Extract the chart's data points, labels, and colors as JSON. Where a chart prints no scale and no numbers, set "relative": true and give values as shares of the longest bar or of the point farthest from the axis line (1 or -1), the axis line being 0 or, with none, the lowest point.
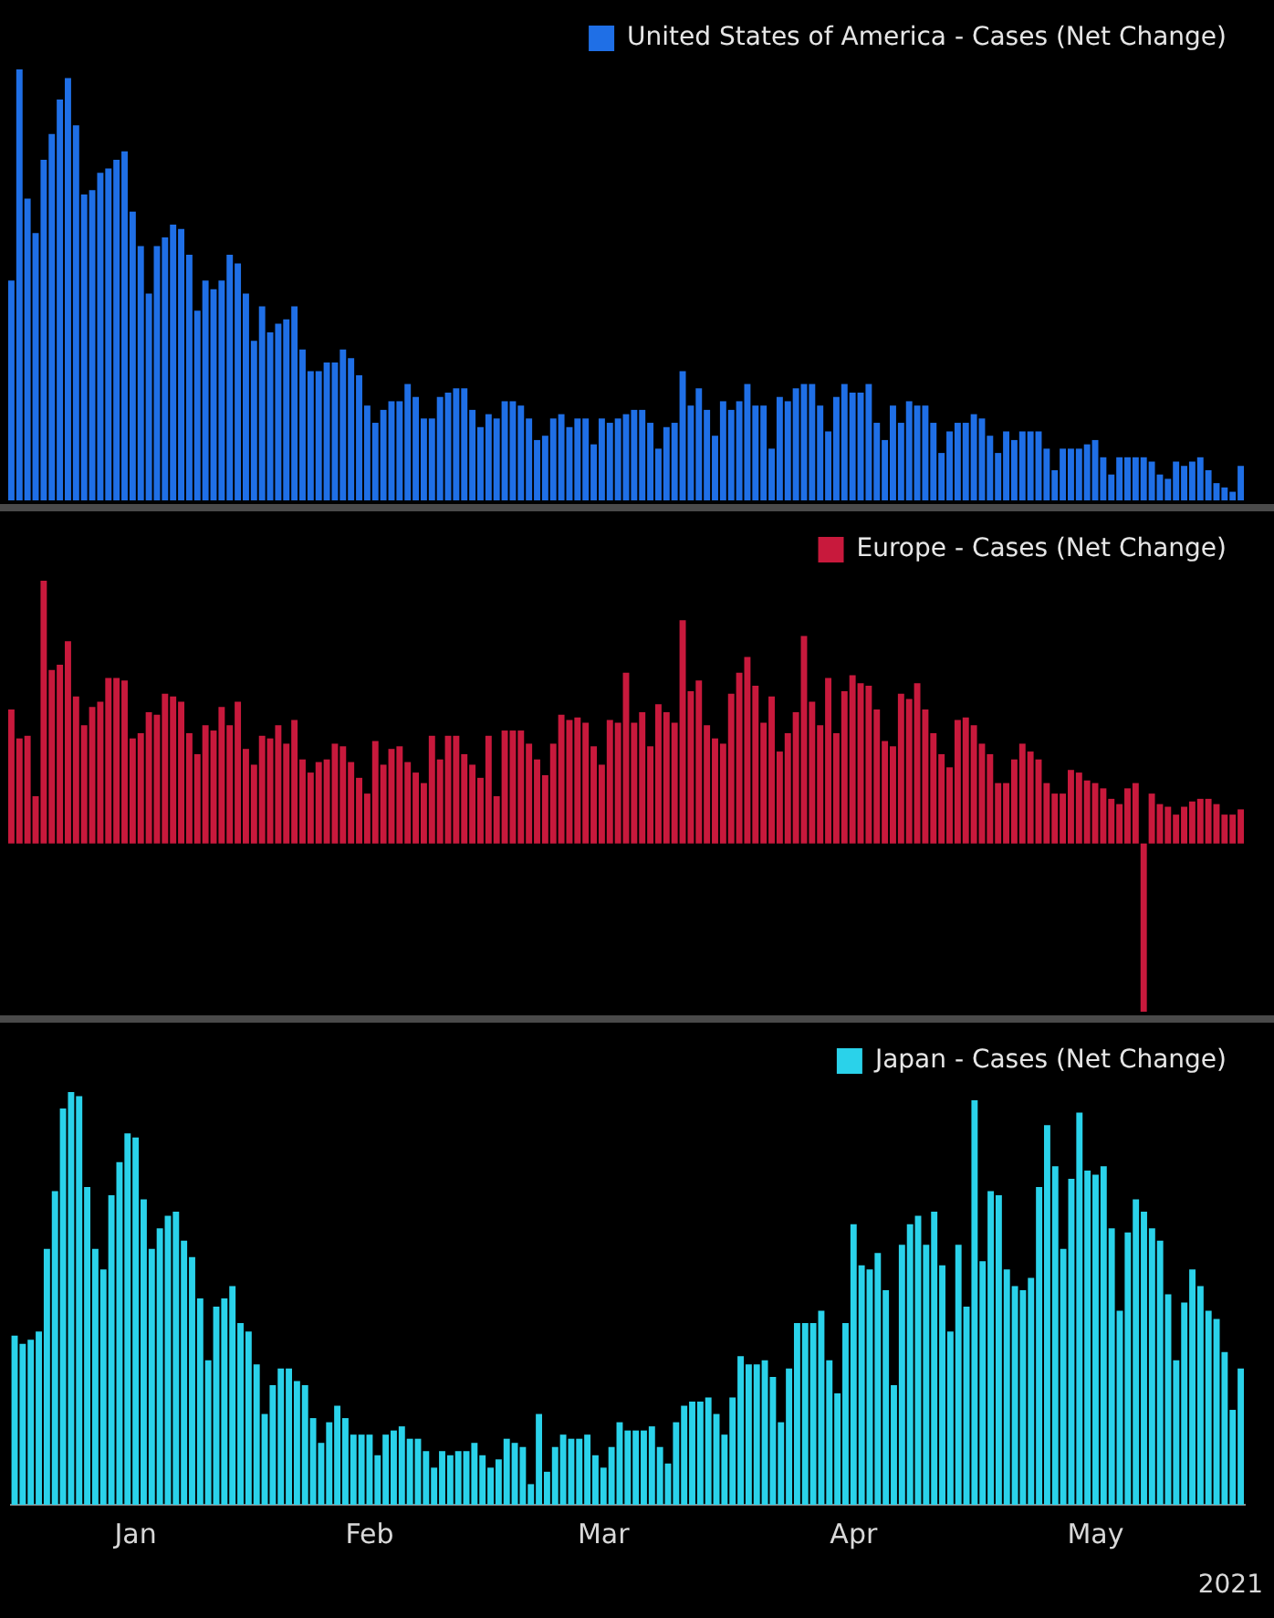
{
  "chart_data": [
    {
      "type": "bar",
      "relative": true,
      "legend": "top right",
      "tick_labels": false,
      "categories": [
        null,
        null,
        null,
        null,
        null,
        null,
        null,
        null,
        null,
        null,
        null,
        null,
        null,
        null,
        null,
        null,
        null,
        null,
        null,
        null,
        null,
        null,
        null,
        null,
        null,
        null,
        null,
        null,
        null,
        null,
        null,
        null,
        null,
        null,
        null,
        null,
        null,
        null,
        null,
        null,
        null,
        null,
        null,
        null,
        null,
        null,
        null,
        null,
        null,
        null,
        null,
        null,
        null,
        null,
        null,
        null,
        null,
        null,
        null,
        null,
        null,
        null,
        null,
        null,
        null,
        null,
        null,
        null,
        null,
        null,
        null,
        null,
        null,
        null,
        null,
        null,
        null,
        null,
        null,
        null,
        null,
        null,
        null,
        null,
        null,
        null,
        null,
        null,
        null,
        null,
        null,
        null,
        null,
        null,
        null,
        null,
        null,
        null,
        null,
        null,
        null,
        null,
        null,
        null,
        null,
        null,
        null,
        null,
        null,
        null,
        null,
        null,
        null,
        null,
        null,
        null,
        null,
        null,
        null,
        null,
        null,
        null,
        null,
        null,
        null,
        null,
        null,
        null,
        null,
        null,
        null,
        null,
        null,
        null,
        null,
        null,
        null,
        null,
        null,
        null,
        null,
        null,
        null,
        null,
        null,
        null,
        null,
        null,
        null,
        null,
        null,
        null,
        null
      ],
      "series": [
        {
          "name": "United States of America - Cases (Net Change)",
          "color": "#1f6fe6",
          "values": [
            0.51,
            1.0,
            0.7,
            0.62,
            0.79,
            0.85,
            0.93,
            0.98,
            0.87,
            0.71,
            0.72,
            0.76,
            0.77,
            0.79,
            0.81,
            0.67,
            0.59,
            0.48,
            0.59,
            0.61,
            0.64,
            0.63,
            0.57,
            0.44,
            0.51,
            0.49,
            0.51,
            0.57,
            0.55,
            0.48,
            0.37,
            0.45,
            0.39,
            0.41,
            0.42,
            0.45,
            0.35,
            0.3,
            0.3,
            0.32,
            0.32,
            0.35,
            0.33,
            0.29,
            0.22,
            0.18,
            0.21,
            0.23,
            0.23,
            0.27,
            0.24,
            0.19,
            0.19,
            0.24,
            0.25,
            0.26,
            0.26,
            0.21,
            0.17,
            0.2,
            0.19,
            0.23,
            0.23,
            0.22,
            0.19,
            0.14,
            0.15,
            0.19,
            0.2,
            0.17,
            0.19,
            0.19,
            0.13,
            0.19,
            0.18,
            0.19,
            0.2,
            0.21,
            0.21,
            0.18,
            0.12,
            0.17,
            0.18,
            0.3,
            0.22,
            0.26,
            0.21,
            0.15,
            0.23,
            0.21,
            0.23,
            0.27,
            0.22,
            0.22,
            0.12,
            0.24,
            0.23,
            0.26,
            0.27,
            0.27,
            0.22,
            0.16,
            0.24,
            0.27,
            0.25,
            0.25,
            0.27,
            0.18,
            0.14,
            0.22,
            0.18,
            0.23,
            0.22,
            0.22,
            0.18,
            0.11,
            0.16,
            0.18,
            0.18,
            0.2,
            0.19,
            0.15,
            0.11,
            0.16,
            0.14,
            0.16,
            0.16,
            0.16,
            0.12,
            0.07,
            0.12,
            0.12,
            0.12,
            0.13,
            0.14,
            0.1,
            0.06,
            0.1,
            0.1,
            0.1,
            0.1,
            0.09,
            0.06,
            0.05,
            0.09,
            0.08,
            0.09,
            0.1,
            0.07,
            0.04,
            0.03,
            0.02,
            0.08
          ]
        }
      ]
    },
    {
      "type": "bar",
      "relative": true,
      "legend": "top right",
      "tick_labels": false,
      "categories": [
        null,
        null,
        null,
        null,
        null,
        null,
        null,
        null,
        null,
        null,
        null,
        null,
        null,
        null,
        null,
        null,
        null,
        null,
        null,
        null,
        null,
        null,
        null,
        null,
        null,
        null,
        null,
        null,
        null,
        null,
        null,
        null,
        null,
        null,
        null,
        null,
        null,
        null,
        null,
        null,
        null,
        null,
        null,
        null,
        null,
        null,
        null,
        null,
        null,
        null,
        null,
        null,
        null,
        null,
        null,
        null,
        null,
        null,
        null,
        null,
        null,
        null,
        null,
        null,
        null,
        null,
        null,
        null,
        null,
        null,
        null,
        null,
        null,
        null,
        null,
        null,
        null,
        null,
        null,
        null,
        null,
        null,
        null,
        null,
        null,
        null,
        null,
        null,
        null,
        null,
        null,
        null,
        null,
        null,
        null,
        null,
        null,
        null,
        null,
        null,
        null,
        null,
        null,
        null,
        null,
        null,
        null,
        null,
        null,
        null,
        null,
        null,
        null,
        null,
        null,
        null,
        null,
        null,
        null,
        null,
        null,
        null,
        null,
        null,
        null,
        null,
        null,
        null,
        null,
        null,
        null,
        null,
        null,
        null,
        null,
        null,
        null,
        null,
        null,
        null,
        null,
        null,
        null,
        null,
        null,
        null,
        null,
        null,
        null,
        null,
        null,
        null,
        null
      ],
      "series": [
        {
          "name": "Europe - Cases (Net Change)",
          "color": "#c8193c",
          "values": [
            0.51,
            0.4,
            0.41,
            0.18,
            1.0,
            0.66,
            0.68,
            0.77,
            0.56,
            0.45,
            0.52,
            0.54,
            0.63,
            0.63,
            0.62,
            0.4,
            0.42,
            0.5,
            0.49,
            0.57,
            0.56,
            0.54,
            0.42,
            0.34,
            0.45,
            0.43,
            0.52,
            0.45,
            0.54,
            0.36,
            0.3,
            0.41,
            0.4,
            0.45,
            0.38,
            0.47,
            0.32,
            0.27,
            0.31,
            0.32,
            0.38,
            0.37,
            0.31,
            0.25,
            0.19,
            0.39,
            0.3,
            0.36,
            0.37,
            0.31,
            0.27,
            0.23,
            0.41,
            0.32,
            0.41,
            0.41,
            0.34,
            0.3,
            0.25,
            0.41,
            0.18,
            0.43,
            0.43,
            0.43,
            0.38,
            0.32,
            0.26,
            0.38,
            0.49,
            0.47,
            0.48,
            0.46,
            0.37,
            0.3,
            0.47,
            0.46,
            0.65,
            0.46,
            0.5,
            0.37,
            0.53,
            0.5,
            0.46,
            0.85,
            0.58,
            0.62,
            0.45,
            0.4,
            0.38,
            0.57,
            0.65,
            0.71,
            0.6,
            0.46,
            0.56,
            0.35,
            0.42,
            0.5,
            0.79,
            0.54,
            0.45,
            0.63,
            0.42,
            0.58,
            0.64,
            0.61,
            0.6,
            0.51,
            0.39,
            0.37,
            0.57,
            0.55,
            0.61,
            0.51,
            0.42,
            0.34,
            0.29,
            0.47,
            0.48,
            0.45,
            0.38,
            0.34,
            0.23,
            0.23,
            0.32,
            0.38,
            0.35,
            0.32,
            0.23,
            0.19,
            0.19,
            0.28,
            0.27,
            0.24,
            0.23,
            0.21,
            0.17,
            0.15,
            0.21,
            0.23,
            -0.64,
            0.19,
            0.15,
            0.14,
            0.11,
            0.14,
            0.16,
            0.17,
            0.17,
            0.15,
            0.11,
            0.11,
            0.13
          ]
        }
      ]
    },
    {
      "type": "bar",
      "relative": true,
      "legend": "top right",
      "tick_labels": "x",
      "categories": [
        null,
        null,
        null,
        null,
        null,
        null,
        null,
        null,
        null,
        null,
        null,
        null,
        null,
        null,
        null,
        "Jan",
        null,
        null,
        null,
        null,
        null,
        null,
        null,
        null,
        null,
        null,
        null,
        null,
        null,
        null,
        null,
        null,
        null,
        null,
        null,
        null,
        null,
        null,
        null,
        null,
        null,
        null,
        null,
        null,
        "Feb",
        null,
        null,
        null,
        null,
        null,
        null,
        null,
        null,
        null,
        null,
        null,
        null,
        null,
        null,
        null,
        null,
        null,
        null,
        null,
        null,
        null,
        null,
        null,
        null,
        null,
        null,
        null,
        null,
        "Mar",
        null,
        null,
        null,
        null,
        null,
        null,
        null,
        null,
        null,
        null,
        null,
        null,
        null,
        null,
        null,
        null,
        null,
        null,
        null,
        null,
        null,
        null,
        null,
        null,
        null,
        null,
        null,
        null,
        null,
        null,
        "Apr",
        null,
        null,
        null,
        null,
        null,
        null,
        null,
        null,
        null,
        null,
        null,
        null,
        null,
        null,
        null,
        null,
        null,
        null,
        null,
        null,
        null,
        null,
        null,
        null,
        null,
        null,
        null,
        null,
        null,
        "May",
        null,
        null,
        null,
        null,
        null,
        null,
        null,
        null,
        null,
        null,
        null,
        null,
        null,
        null,
        null,
        null,
        null,
        null
      ],
      "series": [
        {
          "name": "Japan - Cases (Net Change)",
          "color": "#2ad2ea",
          "values": [
            0.41,
            0.39,
            0.4,
            0.42,
            0.62,
            0.76,
            0.96,
            1.0,
            0.99,
            0.77,
            0.62,
            0.57,
            0.75,
            0.83,
            0.9,
            0.89,
            0.74,
            0.62,
            0.67,
            0.7,
            0.71,
            0.64,
            0.6,
            0.5,
            0.35,
            0.48,
            0.5,
            0.53,
            0.44,
            0.42,
            0.34,
            0.22,
            0.29,
            0.33,
            0.33,
            0.3,
            0.29,
            0.21,
            0.15,
            0.2,
            0.24,
            0.21,
            0.17,
            0.17,
            0.17,
            0.12,
            0.17,
            0.18,
            0.19,
            0.16,
            0.16,
            0.13,
            0.09,
            0.13,
            0.12,
            0.13,
            0.13,
            0.15,
            0.12,
            0.09,
            0.11,
            0.16,
            0.15,
            0.14,
            0.05,
            0.22,
            0.08,
            0.14,
            0.17,
            0.16,
            0.16,
            0.17,
            0.12,
            0.09,
            0.14,
            0.2,
            0.18,
            0.18,
            0.18,
            0.19,
            0.14,
            0.1,
            0.2,
            0.24,
            0.25,
            0.25,
            0.26,
            0.22,
            0.17,
            0.26,
            0.36,
            0.34,
            0.34,
            0.35,
            0.31,
            0.2,
            0.33,
            0.44,
            0.44,
            0.44,
            0.47,
            0.35,
            0.27,
            0.44,
            0.68,
            0.58,
            0.57,
            0.61,
            0.52,
            0.29,
            0.63,
            0.68,
            0.7,
            0.63,
            0.71,
            0.58,
            0.42,
            0.63,
            0.48,
            0.98,
            0.59,
            0.76,
            0.75,
            0.57,
            0.53,
            0.52,
            0.55,
            0.77,
            0.92,
            0.82,
            0.62,
            0.79,
            0.95,
            0.81,
            0.8,
            0.82,
            0.67,
            0.47,
            0.66,
            0.74,
            0.71,
            0.67,
            0.64,
            0.51,
            0.35,
            0.49,
            0.57,
            0.53,
            0.47,
            0.45,
            0.37,
            0.23,
            0.33
          ]
        }
      ],
      "annotations": [
        "2021"
      ]
    }
  ]
}
